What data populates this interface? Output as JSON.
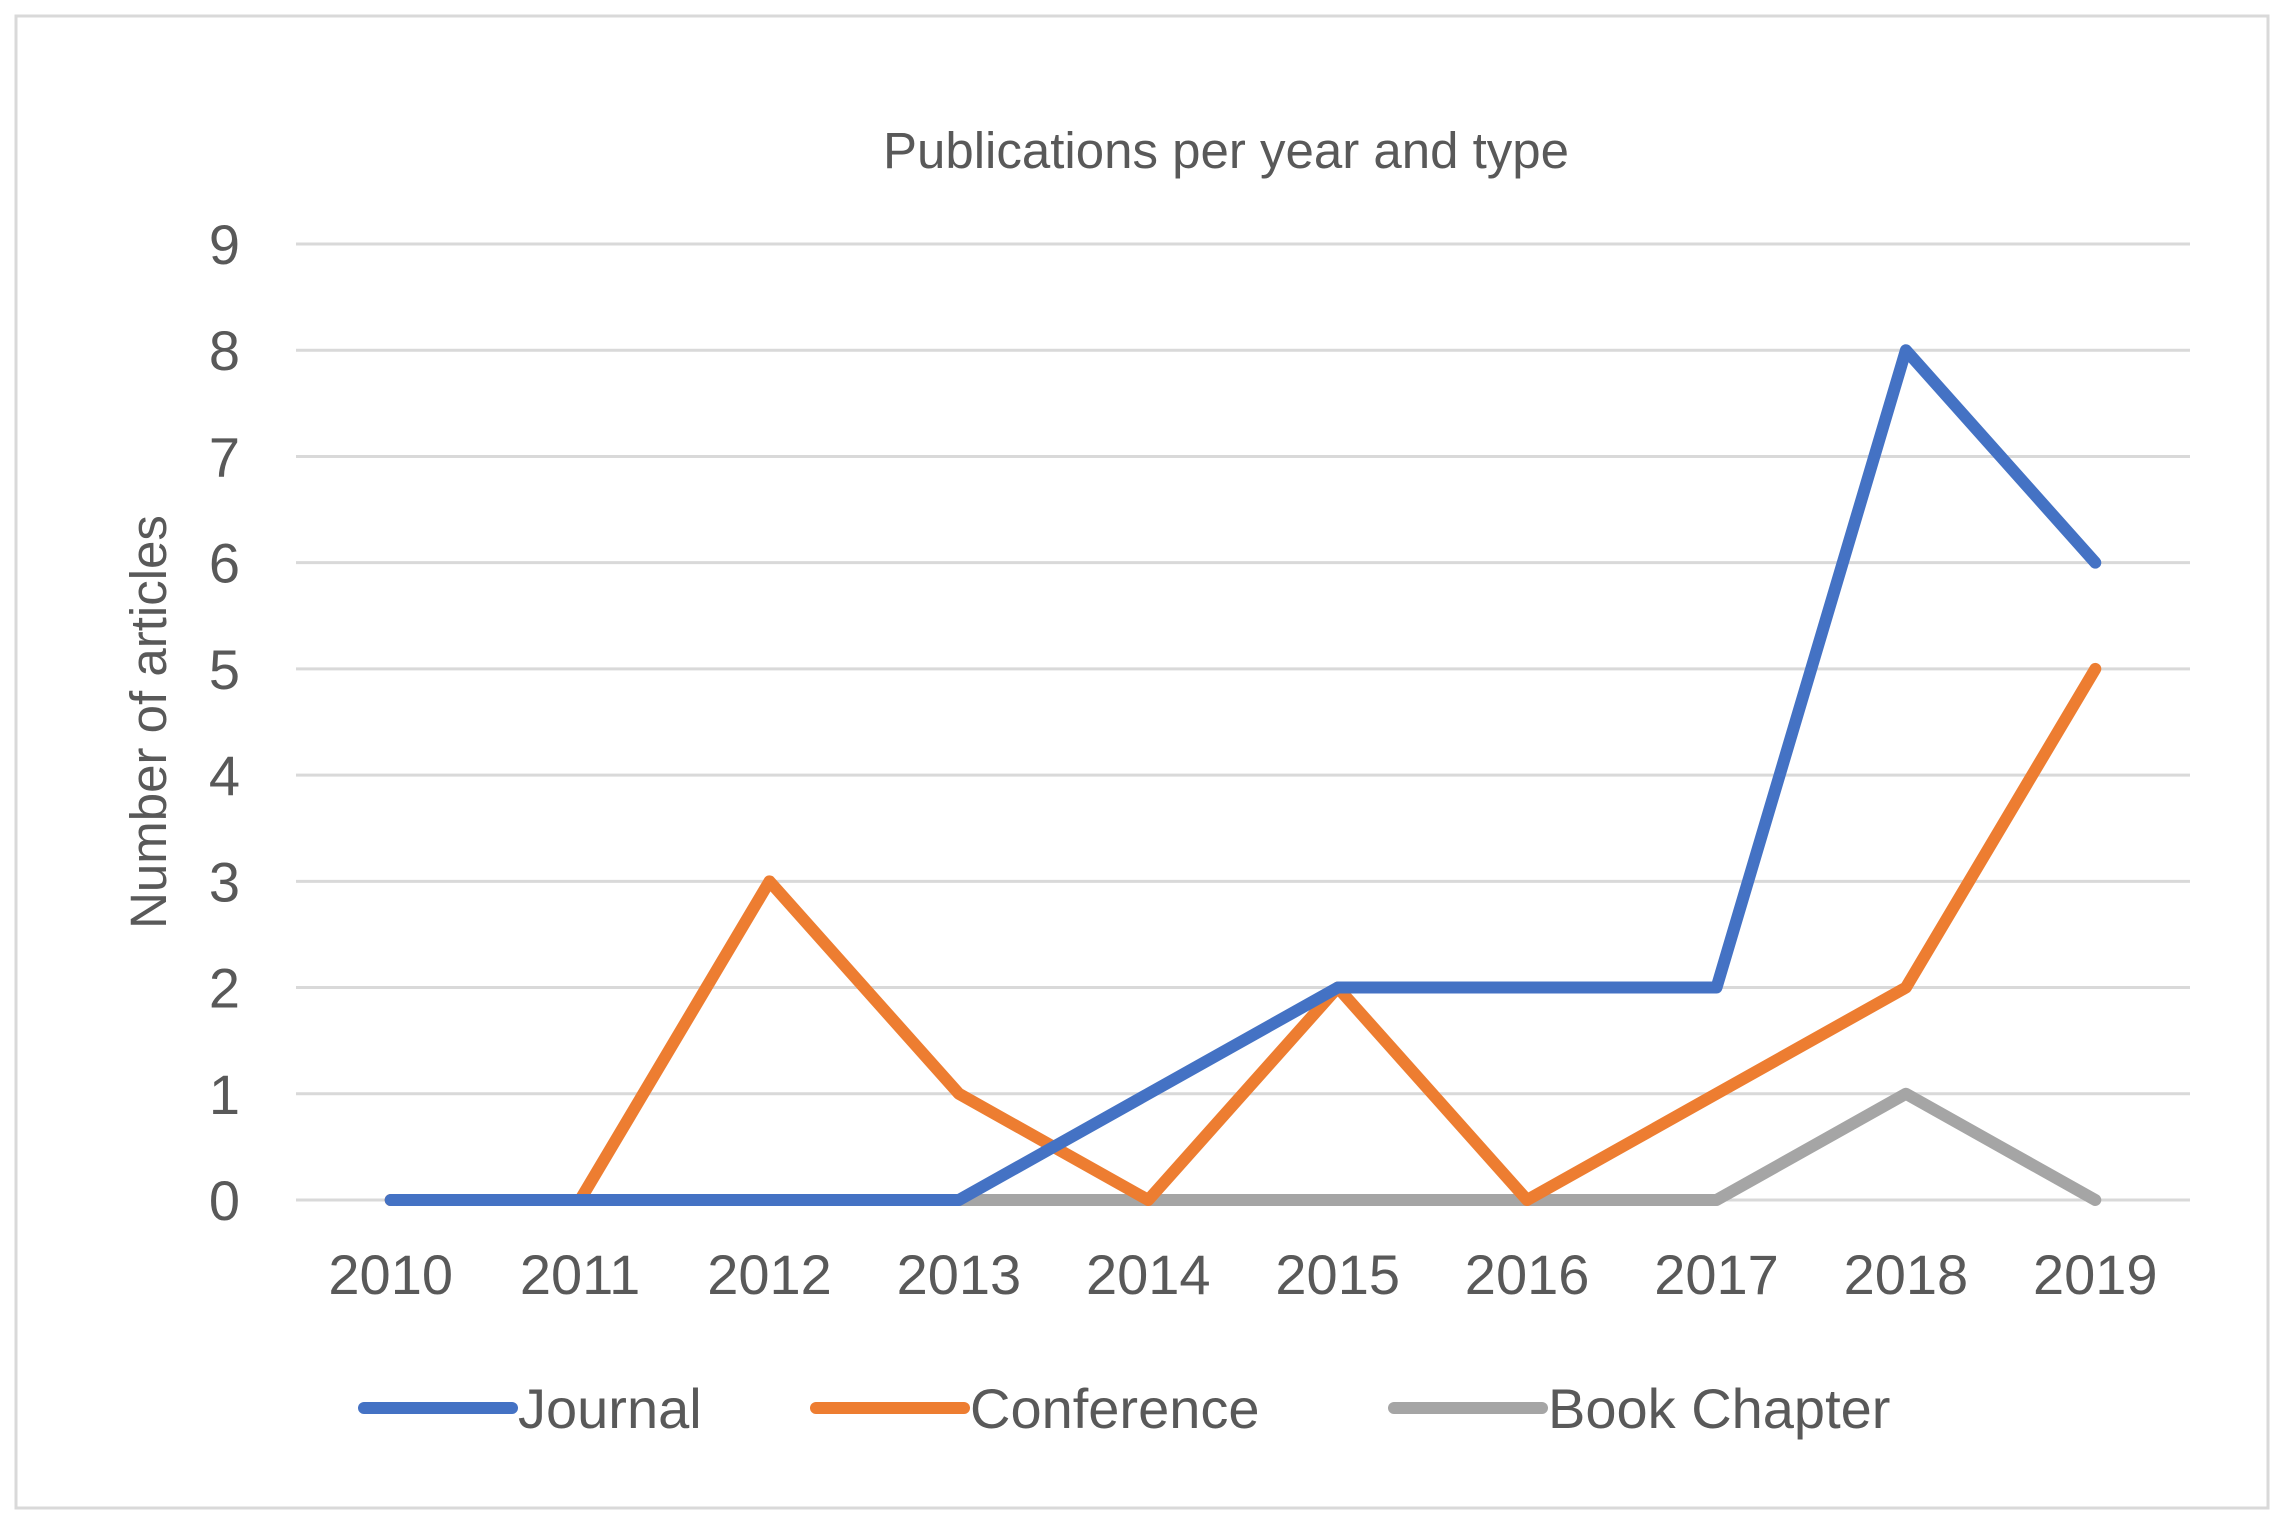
{
  "chart_data": {
    "type": "line",
    "title": "Publications per year and type",
    "xlabel": "",
    "ylabel": "Number of articles",
    "ylim": [
      0,
      9
    ],
    "yticks": [
      "0",
      "1",
      "2",
      "3",
      "4",
      "5",
      "6",
      "7",
      "8",
      "9"
    ],
    "categories": [
      "2010",
      "2011",
      "2012",
      "2013",
      "2014",
      "2015",
      "2016",
      "2017",
      "2018",
      "2019"
    ],
    "grid": true,
    "legend_position": "bottom",
    "series": [
      {
        "name": "Journal",
        "color": "#4472C4",
        "values": [
          0,
          0,
          0,
          0,
          1,
          2,
          2,
          2,
          8,
          6
        ]
      },
      {
        "name": "Conference",
        "color": "#ED7D31",
        "values": [
          0,
          0,
          3,
          1,
          0,
          2,
          0,
          1,
          2,
          5
        ]
      },
      {
        "name": "Book Chapter",
        "color": "#A5A5A5",
        "values": [
          0,
          0,
          0,
          0,
          0,
          0,
          0,
          0,
          1,
          0
        ]
      }
    ]
  }
}
